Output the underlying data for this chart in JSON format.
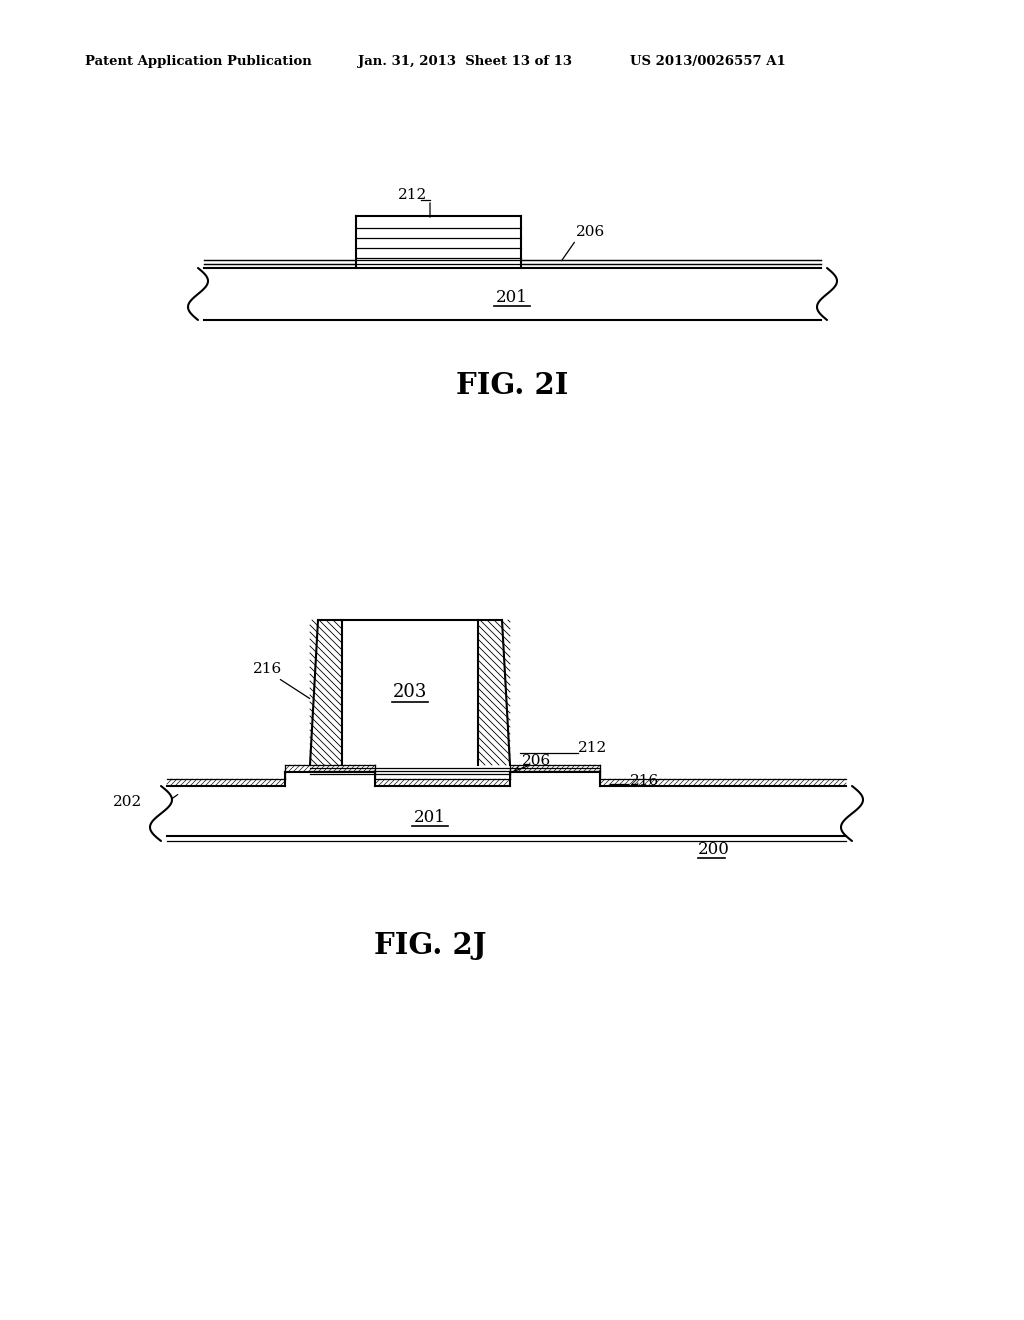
{
  "bg_color": "#ffffff",
  "header_left": "Patent Application Publication",
  "header_mid": "Jan. 31, 2013  Sheet 13 of 13",
  "header_right": "US 2013/0026557 A1",
  "fig2i_label": "FIG. 2I",
  "fig2j_label": "FIG. 2J",
  "label_201_fig2i": "201",
  "label_212_fig2i": "212",
  "label_206_fig2i": "206",
  "label_201_fig2j": "201",
  "label_200_fig2j": "200",
  "label_202_fig2j": "202",
  "label_203_fig2j": "203",
  "label_206_fig2j": "206",
  "label_212_fig2j": "212",
  "label_216a_fig2j": "216",
  "label_216b_fig2j": "216"
}
